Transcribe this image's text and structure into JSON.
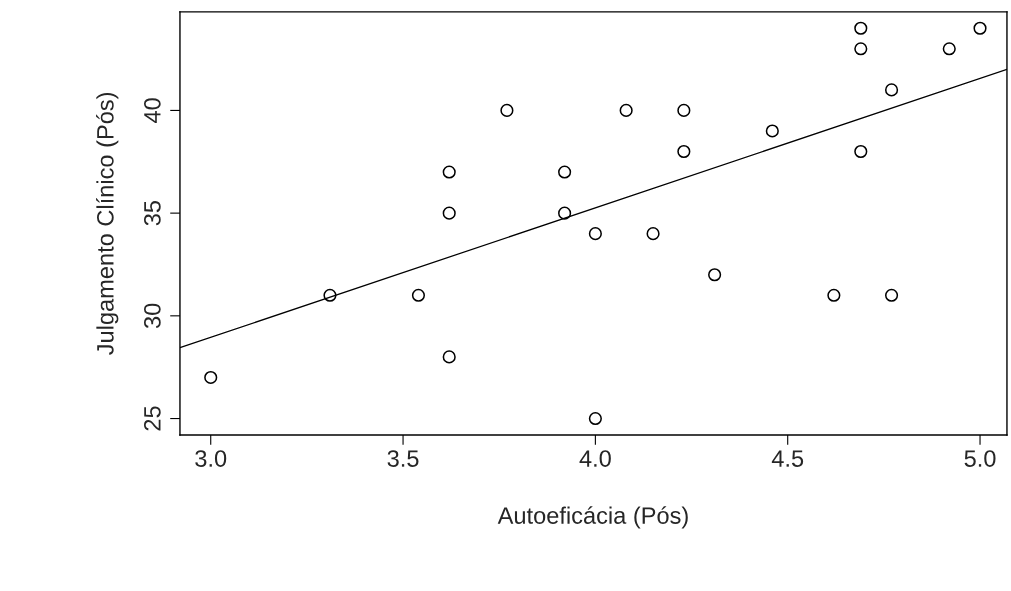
{
  "chart_data": {
    "type": "scatter",
    "xlabel": "Autoeficácia (Pós)",
    "ylabel": "Julgamento Clínico (Pós)",
    "marker": "circle",
    "grid": false,
    "legend": false,
    "xlim": [
      2.92,
      5.07
    ],
    "ylim": [
      24.2,
      44.8
    ],
    "xticks": [
      {
        "value": 3.0,
        "label": "3.0"
      },
      {
        "value": 3.5,
        "label": "3.5"
      },
      {
        "value": 4.0,
        "label": "4.0"
      },
      {
        "value": 4.5,
        "label": "4.5"
      },
      {
        "value": 5.0,
        "label": "5.0"
      }
    ],
    "yticks": [
      25,
      30,
      35,
      40
    ],
    "series": [
      {
        "color": "#000000",
        "x": [
          3.0,
          3.31,
          3.54,
          3.62,
          3.62,
          3.62,
          3.77,
          3.92,
          3.92,
          4.0,
          4.0,
          4.08,
          4.15,
          4.23,
          4.23,
          4.31,
          4.46,
          4.62,
          4.69,
          4.69,
          4.69,
          4.77,
          4.77,
          4.92,
          5.0
        ],
        "values": [
          27,
          31,
          31,
          28,
          35,
          37,
          40,
          37,
          35,
          34,
          25,
          40,
          34,
          40,
          38,
          32,
          39,
          31,
          44,
          43,
          38,
          41,
          31,
          43,
          44
        ]
      },
      {
        "type": "line",
        "color": "#000000",
        "marker": "none",
        "x": [
          2.92,
          5.07
        ],
        "values": [
          28.45,
          42.0
        ]
      }
    ]
  }
}
